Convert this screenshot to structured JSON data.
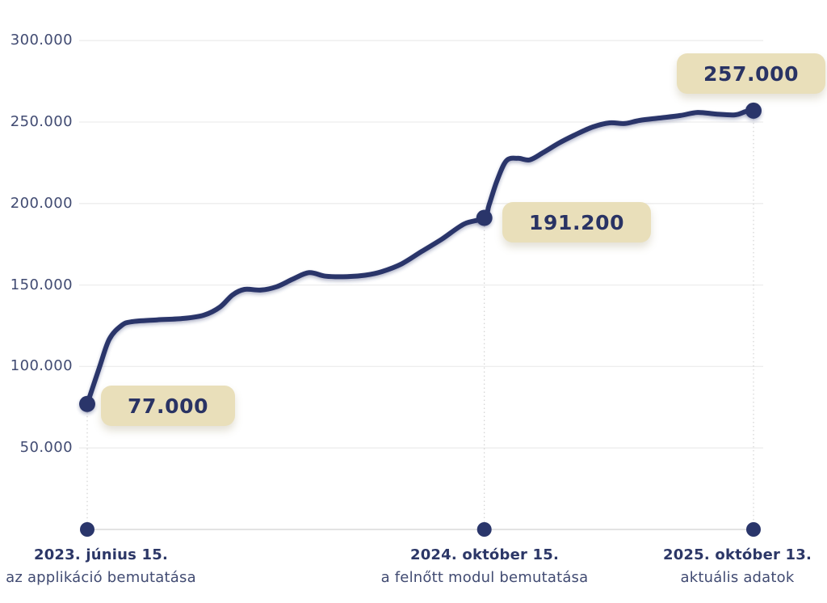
{
  "chart_data": {
    "type": "line",
    "y_axis": {
      "range": [
        0,
        300000
      ],
      "grid": true,
      "ticks": [
        {
          "label": "300.000",
          "value": 300000
        },
        {
          "label": "250.000",
          "value": 250000
        },
        {
          "label": "200.000",
          "value": 200000
        },
        {
          "label": "150.000",
          "value": 150000
        },
        {
          "label": "100.000",
          "value": 100000
        },
        {
          "label": "50.000",
          "value": 50000
        }
      ]
    },
    "milestones": [
      {
        "t": 0,
        "value": 77000,
        "value_label": "77.000",
        "date": "2023. június 15.",
        "description": "az applikáció bemutatása"
      },
      {
        "t": 0.596,
        "value": 191200,
        "value_label": "191.200",
        "date": "2024. október 15.",
        "description": "a felnőtt modul bemutatása"
      },
      {
        "t": 1,
        "value": 257000,
        "value_label": "257.000",
        "date": "2025. október 13.",
        "description": "aktuális adatok"
      }
    ],
    "series": [
      {
        "name": "growth-curve",
        "points": [
          [
            0,
            77000
          ],
          [
            0.018,
            99000
          ],
          [
            0.033,
            116600
          ],
          [
            0.051,
            125000
          ],
          [
            0.067,
            127500
          ],
          [
            0.105,
            128600
          ],
          [
            0.145,
            129500
          ],
          [
            0.175,
            131500
          ],
          [
            0.199,
            136400
          ],
          [
            0.218,
            143900
          ],
          [
            0.236,
            147300
          ],
          [
            0.261,
            146900
          ],
          [
            0.284,
            148900
          ],
          [
            0.308,
            153500
          ],
          [
            0.333,
            157600
          ],
          [
            0.358,
            155400
          ],
          [
            0.39,
            155100
          ],
          [
            0.417,
            156000
          ],
          [
            0.442,
            158200
          ],
          [
            0.472,
            163000
          ],
          [
            0.502,
            170600
          ],
          [
            0.532,
            178100
          ],
          [
            0.566,
            187500
          ],
          [
            0.596,
            191200
          ],
          [
            0.603,
            199000
          ],
          [
            0.615,
            214000
          ],
          [
            0.629,
            226200
          ],
          [
            0.646,
            227800
          ],
          [
            0.664,
            226800
          ],
          [
            0.684,
            231200
          ],
          [
            0.708,
            237100
          ],
          [
            0.732,
            242100
          ],
          [
            0.759,
            247000
          ],
          [
            0.784,
            249500
          ],
          [
            0.807,
            249100
          ],
          [
            0.829,
            251000
          ],
          [
            0.859,
            252500
          ],
          [
            0.89,
            254000
          ],
          [
            0.916,
            255900
          ],
          [
            0.944,
            254900
          ],
          [
            0.972,
            254400
          ],
          [
            0.988,
            256400
          ],
          [
            1,
            257000
          ]
        ]
      }
    ],
    "colors": {
      "line": "#2a366b",
      "dot": "#2a366b",
      "label_bg": "#e9dfba",
      "label_text": "#293364",
      "axis_text": "#414b72",
      "date_text": "#2c3767",
      "grid": "#ededed",
      "dropline": "#c9c9c9",
      "timeline": "#e3e3e3"
    },
    "legend": null,
    "grid_on": true
  }
}
